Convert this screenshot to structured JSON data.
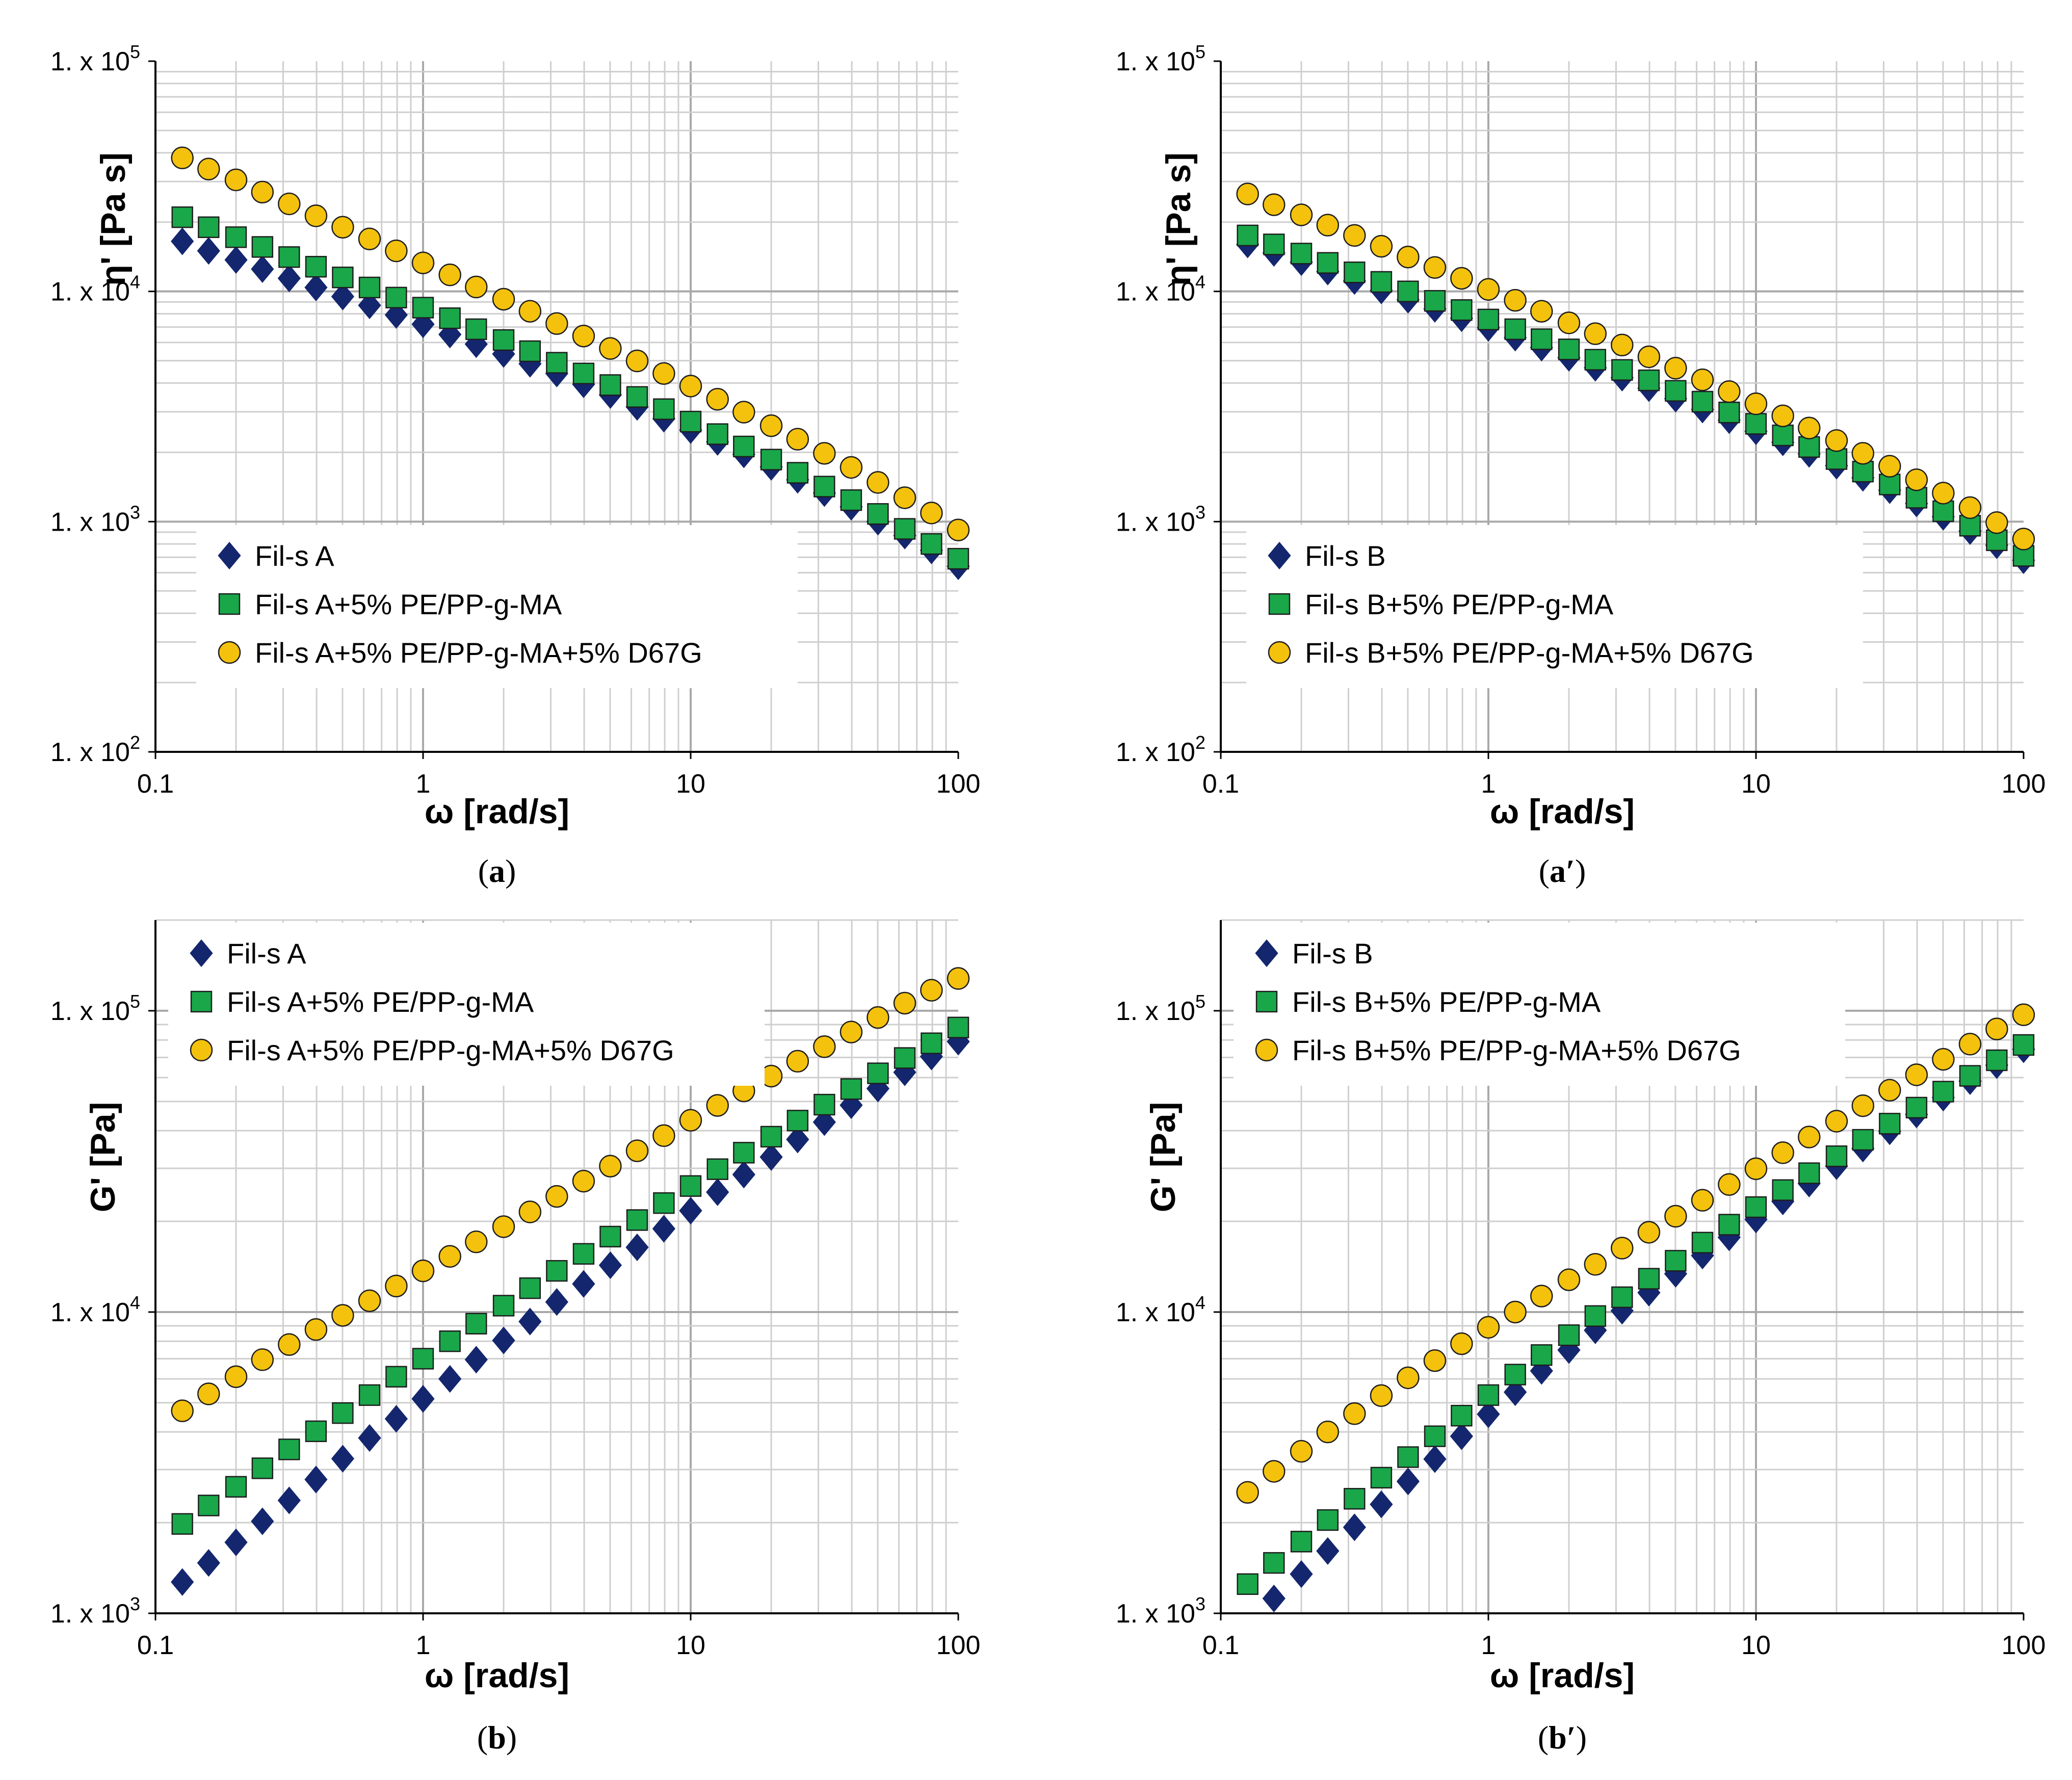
{
  "figure": {
    "panels": [
      "a",
      "a_prime",
      "b",
      "b_prime"
    ]
  },
  "chart_data": [
    {
      "id": "a",
      "type": "scatter",
      "title": "",
      "caption_letter": "a",
      "caption_open": "(",
      "caption_close": ")",
      "xlabel": "ω [rad/s]",
      "ylabel": "η' [Pa s]",
      "xscale": "log",
      "yscale": "log",
      "xlim": [
        0.1,
        100
      ],
      "ylim": [
        100,
        100000
      ],
      "x_ticks": [
        {
          "value": 0.1,
          "label": "0.1"
        },
        {
          "value": 1,
          "label": "1"
        },
        {
          "value": 10,
          "label": "10"
        },
        {
          "value": 100,
          "label": "100"
        }
      ],
      "y_ticks": [
        {
          "value": 100,
          "base": "1. x 10",
          "exp": "2"
        },
        {
          "value": 1000,
          "base": "1. x 10",
          "exp": "3"
        },
        {
          "value": 10000,
          "base": "1. x 10",
          "exp": "4"
        },
        {
          "value": 100000,
          "base": "1. x 10",
          "exp": "5"
        }
      ],
      "grid": true,
      "legend_position": "bottom-left",
      "x": [
        0.126,
        0.158,
        0.2,
        0.251,
        0.316,
        0.398,
        0.501,
        0.631,
        0.794,
        1,
        1.26,
        1.58,
        2,
        2.51,
        3.16,
        3.98,
        5.01,
        6.31,
        7.94,
        10,
        12.6,
        15.8,
        20,
        25.1,
        31.6,
        39.8,
        50.1,
        63.1,
        79.4,
        100
      ],
      "series": [
        {
          "name": "Fil-s A",
          "marker": "diamond",
          "color": "#14266e",
          "values": [
            16500,
            15000,
            13700,
            12500,
            11400,
            10400,
            9500,
            8700,
            7900,
            7200,
            6500,
            5900,
            5350,
            4850,
            4400,
            3950,
            3550,
            3150,
            2800,
            2500,
            2220,
            1960,
            1730,
            1520,
            1330,
            1160,
            1000,
            870,
            750,
            640
          ]
        },
        {
          "name": "Fil-s A+5% PE/PP-g-MA",
          "marker": "square",
          "color": "#19a74a",
          "values": [
            21000,
            19000,
            17200,
            15600,
            14100,
            12800,
            11500,
            10400,
            9400,
            8500,
            7650,
            6850,
            6150,
            5500,
            4900,
            4400,
            3920,
            3480,
            3080,
            2720,
            2400,
            2120,
            1860,
            1630,
            1420,
            1240,
            1080,
            930,
            800,
            690
          ]
        },
        {
          "name": "Fil-s A+5% PE/PP-g-MA+5% D67G",
          "marker": "circle",
          "color": "#f4c20d",
          "values": [
            38000,
            34000,
            30500,
            27000,
            24000,
            21300,
            19000,
            16900,
            15000,
            13300,
            11800,
            10450,
            9250,
            8200,
            7250,
            6400,
            5650,
            4990,
            4400,
            3880,
            3400,
            2990,
            2610,
            2280,
            1980,
            1720,
            1480,
            1270,
            1090,
            920
          ]
        }
      ]
    },
    {
      "id": "a_prime",
      "type": "scatter",
      "title": "",
      "caption_letter": "a′",
      "caption_open": "(",
      "caption_close": ")",
      "xlabel": "ω [rad/s]",
      "ylabel": "η' [Pa s]",
      "xscale": "log",
      "yscale": "log",
      "xlim": [
        0.1,
        100
      ],
      "ylim": [
        100,
        100000
      ],
      "x_ticks": [
        {
          "value": 0.1,
          "label": "0.1"
        },
        {
          "value": 1,
          "label": "1"
        },
        {
          "value": 10,
          "label": "10"
        },
        {
          "value": 100,
          "label": "100"
        }
      ],
      "y_ticks": [
        {
          "value": 100,
          "base": "1. x 10",
          "exp": "2"
        },
        {
          "value": 1000,
          "base": "1. x 10",
          "exp": "3"
        },
        {
          "value": 10000,
          "base": "1. x 10",
          "exp": "4"
        },
        {
          "value": 100000,
          "base": "1. x 10",
          "exp": "5"
        }
      ],
      "grid": true,
      "legend_position": "bottom-left",
      "x": [
        0.126,
        0.158,
        0.2,
        0.251,
        0.316,
        0.398,
        0.501,
        0.631,
        0.794,
        1,
        1.26,
        1.58,
        2,
        2.51,
        3.16,
        3.98,
        5.01,
        6.31,
        7.94,
        10,
        12.6,
        15.8,
        20,
        25.1,
        31.6,
        39.8,
        50.1,
        63.1,
        79.4,
        100
      ],
      "series": [
        {
          "name": "Fil-s B",
          "marker": "diamond",
          "color": "#14266e",
          "values": [
            16000,
            14700,
            13400,
            12200,
            11100,
            10100,
            9200,
            8400,
            7650,
            6950,
            6300,
            5700,
            5150,
            4660,
            4220,
            3800,
            3420,
            3070,
            2760,
            2470,
            2210,
            1970,
            1750,
            1550,
            1370,
            1200,
            1050,
            910,
            790,
            680
          ]
        },
        {
          "name": "Fil-s B+5% PE/PP-g-MA",
          "marker": "square",
          "color": "#19a74a",
          "values": [
            17500,
            16000,
            14600,
            13300,
            12100,
            11000,
            10000,
            9100,
            8300,
            7550,
            6850,
            6200,
            5600,
            5050,
            4560,
            4110,
            3700,
            3320,
            2980,
            2660,
            2370,
            2110,
            1870,
            1650,
            1450,
            1270,
            1110,
            960,
            830,
            710
          ]
        },
        {
          "name": "Fil-s B+5% PE/PP-g-MA+5% D67G",
          "marker": "circle",
          "color": "#f4c20d",
          "values": [
            26500,
            23800,
            21500,
            19400,
            17500,
            15700,
            14100,
            12700,
            11400,
            10200,
            9150,
            8200,
            7300,
            6550,
            5850,
            5200,
            4640,
            4130,
            3670,
            3250,
            2880,
            2550,
            2250,
            1980,
            1740,
            1520,
            1330,
            1150,
            990,
            840
          ]
        }
      ]
    },
    {
      "id": "b",
      "type": "scatter",
      "title": "",
      "caption_letter": "b",
      "caption_open": "(",
      "caption_close": ")",
      "xlabel": "ω [rad/s]",
      "ylabel": "G' [Pa]",
      "xscale": "log",
      "yscale": "log",
      "xlim": [
        0.1,
        100
      ],
      "ylim": [
        1000,
        200000
      ],
      "x_ticks": [
        {
          "value": 0.1,
          "label": "0.1"
        },
        {
          "value": 1,
          "label": "1"
        },
        {
          "value": 10,
          "label": "10"
        },
        {
          "value": 100,
          "label": "100"
        }
      ],
      "y_ticks": [
        {
          "value": 1000,
          "base": "1. x 10",
          "exp": "3"
        },
        {
          "value": 10000,
          "base": "1. x 10",
          "exp": "4"
        },
        {
          "value": 100000,
          "base": "1. x 10",
          "exp": "5"
        }
      ],
      "grid": true,
      "legend_position": "top-left",
      "x": [
        0.126,
        0.158,
        0.2,
        0.251,
        0.316,
        0.398,
        0.501,
        0.631,
        0.794,
        1,
        1.26,
        1.58,
        2,
        2.51,
        3.16,
        3.98,
        5.01,
        6.31,
        7.94,
        10,
        12.6,
        15.8,
        20,
        25.1,
        31.6,
        39.8,
        50.1,
        63.1,
        79.4,
        100
      ],
      "series": [
        {
          "name": "Fil-s A",
          "marker": "diamond",
          "color": "#14266e",
          "values": [
            1270,
            1470,
            1720,
            2020,
            2370,
            2780,
            3260,
            3820,
            4420,
            5150,
            6000,
            6950,
            8050,
            9300,
            10800,
            12400,
            14300,
            16400,
            18900,
            21700,
            25000,
            28600,
            32700,
            37400,
            42700,
            48600,
            55200,
            62500,
            70500,
            79000
          ]
        },
        {
          "name": "Fil-s A+5% PE/PP-g-MA",
          "marker": "square",
          "color": "#19a74a",
          "values": [
            1980,
            2280,
            2630,
            3030,
            3500,
            4020,
            4620,
            5300,
            6100,
            7000,
            8000,
            9150,
            10500,
            12000,
            13700,
            15600,
            17800,
            20200,
            23000,
            26200,
            29800,
            33800,
            38200,
            43200,
            48800,
            55000,
            62000,
            69700,
            78000,
            88000
          ]
        },
        {
          "name": "Fil-s A+5% PE/PP-g-MA+5% D67G",
          "marker": "circle",
          "color": "#f4c20d",
          "values": [
            4700,
            5350,
            6100,
            6950,
            7800,
            8750,
            9750,
            10900,
            12200,
            13700,
            15300,
            17100,
            19200,
            21500,
            24200,
            27200,
            30500,
            34300,
            38500,
            43300,
            48500,
            54200,
            60700,
            68000,
            76000,
            85000,
            95000,
            106000,
            117000,
            128000
          ]
        }
      ]
    },
    {
      "id": "b_prime",
      "type": "scatter",
      "title": "",
      "caption_letter": "b′",
      "caption_open": "(",
      "caption_close": ")",
      "xlabel": "ω [rad/s]",
      "ylabel": "G' [Pa]",
      "xscale": "log",
      "yscale": "log",
      "xlim": [
        0.1,
        100
      ],
      "ylim": [
        1000,
        200000
      ],
      "x_ticks": [
        {
          "value": 0.1,
          "label": "0.1"
        },
        {
          "value": 1,
          "label": "1"
        },
        {
          "value": 10,
          "label": "10"
        },
        {
          "value": 100,
          "label": "100"
        }
      ],
      "y_ticks": [
        {
          "value": 1000,
          "base": "1. x 10",
          "exp": "3"
        },
        {
          "value": 10000,
          "base": "1. x 10",
          "exp": "4"
        },
        {
          "value": 100000,
          "base": "1. x 10",
          "exp": "5"
        }
      ],
      "grid": true,
      "legend_position": "top-left",
      "x": [
        0.126,
        0.158,
        0.2,
        0.251,
        0.316,
        0.398,
        0.501,
        0.631,
        0.794,
        1,
        1.26,
        1.58,
        2,
        2.51,
        3.16,
        3.98,
        5.01,
        6.31,
        7.94,
        10,
        12.6,
        15.8,
        20,
        25.1,
        31.6,
        39.8,
        50.1,
        63.1,
        79.4,
        100
      ],
      "series": [
        {
          "name": "Fil-s B",
          "marker": "diamond",
          "color": "#14266e",
          "values": [
            null,
            1120,
            1350,
            1610,
            1930,
            2300,
            2740,
            3250,
            3870,
            4580,
            5420,
            6380,
            7480,
            8700,
            10100,
            11600,
            13400,
            15400,
            17700,
            20300,
            23300,
            26700,
            30500,
            34900,
            39800,
            45300,
            51500,
            58400,
            66000,
            74500
          ]
        },
        {
          "name": "Fil-s B+5% PE/PP-g-MA",
          "marker": "square",
          "color": "#19a74a",
          "values": [
            1250,
            1470,
            1730,
            2040,
            2400,
            2820,
            3300,
            3870,
            4530,
            5300,
            6200,
            7200,
            8380,
            9700,
            11200,
            12900,
            14800,
            17000,
            19500,
            22300,
            25400,
            28900,
            32900,
            37300,
            42200,
            47700,
            53900,
            60800,
            68500,
            77000
          ]
        },
        {
          "name": "Fil-s B+5% PE/PP-g-MA+5% D67G",
          "marker": "circle",
          "color": "#f4c20d",
          "values": [
            2520,
            2960,
            3450,
            4000,
            4600,
            5280,
            6050,
            6900,
            7850,
            8900,
            10000,
            11300,
            12800,
            14400,
            16300,
            18400,
            20800,
            23500,
            26500,
            29900,
            33800,
            38100,
            43000,
            48400,
            54500,
            61300,
            69000,
            77500,
            87000,
            97000
          ]
        }
      ]
    }
  ]
}
